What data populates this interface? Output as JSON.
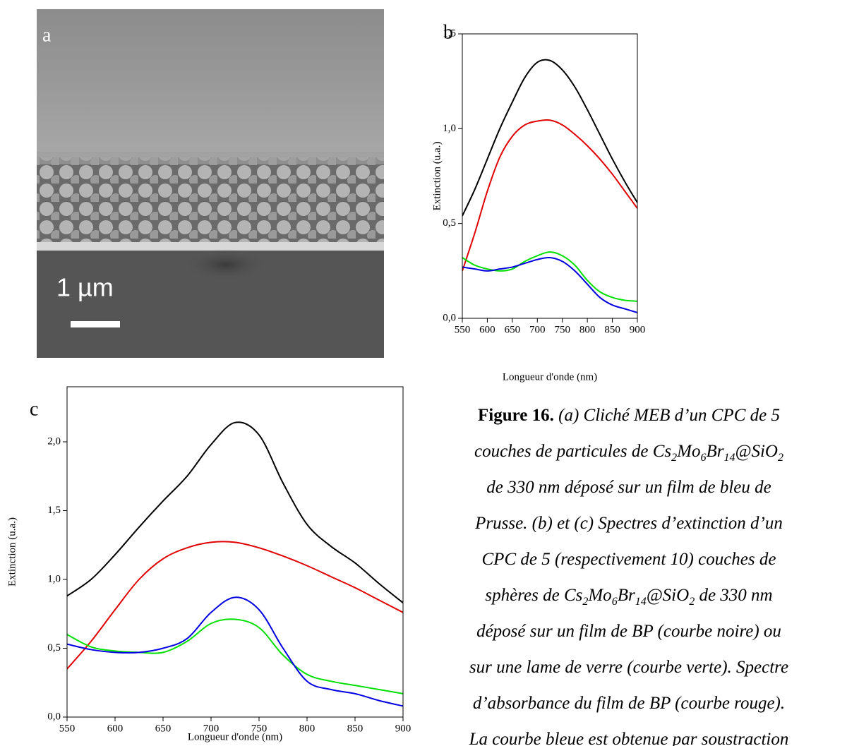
{
  "panel_a": {
    "label": "a",
    "scale_bar": "1 µm"
  },
  "chart_data": [
    {
      "type": "line",
      "label": "b",
      "xlabel": "Longueur d'onde (nm)",
      "ylabel": "Extinction (u.a.)",
      "x": [
        550,
        575,
        600,
        625,
        650,
        675,
        700,
        725,
        750,
        775,
        800,
        825,
        850,
        875,
        900
      ],
      "xlim": [
        550,
        900
      ],
      "xticks": [
        550,
        600,
        650,
        700,
        750,
        800,
        850,
        900
      ],
      "ylim": [
        0,
        1.5
      ],
      "yticks": [
        {
          "value": 0,
          "label": "0,0"
        },
        {
          "value": 0.5,
          "label": "0,5"
        },
        {
          "value": 1,
          "label": "1,0"
        },
        {
          "value": 1.5,
          "label": "1,5"
        }
      ],
      "series": [
        {
          "color": "#000000",
          "values": [
            0.54,
            0.68,
            0.84,
            1.0,
            1.14,
            1.27,
            1.35,
            1.36,
            1.31,
            1.22,
            1.1,
            0.97,
            0.84,
            0.72,
            0.61
          ]
        },
        {
          "color": "#e00000",
          "values": [
            0.25,
            0.45,
            0.67,
            0.85,
            0.96,
            1.02,
            1.04,
            1.045,
            1.02,
            0.97,
            0.91,
            0.84,
            0.76,
            0.67,
            0.58
          ]
        },
        {
          "color": "#00e000",
          "values": [
            0.32,
            0.28,
            0.26,
            0.25,
            0.26,
            0.3,
            0.33,
            0.35,
            0.33,
            0.28,
            0.2,
            0.14,
            0.11,
            0.095,
            0.09
          ]
        },
        {
          "color": "#0000e0",
          "values": [
            0.27,
            0.26,
            0.25,
            0.26,
            0.27,
            0.29,
            0.31,
            0.32,
            0.3,
            0.25,
            0.18,
            0.11,
            0.07,
            0.05,
            0.03
          ]
        }
      ]
    },
    {
      "type": "line",
      "label": "c",
      "xlabel": "Longueur d'onde (nm)",
      "ylabel": "Extinction (u.a.)",
      "x": [
        550,
        575,
        600,
        625,
        650,
        675,
        700,
        725,
        750,
        775,
        800,
        825,
        850,
        875,
        900
      ],
      "xlim": [
        550,
        900
      ],
      "xticks": [
        550,
        600,
        650,
        700,
        750,
        800,
        850,
        900
      ],
      "ylim": [
        0,
        2.4
      ],
      "yticks": [
        {
          "value": 0,
          "label": "0,0"
        },
        {
          "value": 0.5,
          "label": "0,5"
        },
        {
          "value": 1,
          "label": "1,0"
        },
        {
          "value": 1.5,
          "label": "1,5"
        },
        {
          "value": 2,
          "label": "2,0"
        }
      ],
      "series": [
        {
          "color": "#000000",
          "values": [
            0.88,
            1.0,
            1.18,
            1.38,
            1.57,
            1.75,
            1.98,
            2.14,
            2.05,
            1.7,
            1.4,
            1.24,
            1.12,
            0.97,
            0.83
          ]
        },
        {
          "color": "#e00000",
          "values": [
            0.35,
            0.55,
            0.78,
            1.0,
            1.15,
            1.23,
            1.27,
            1.27,
            1.23,
            1.17,
            1.1,
            1.02,
            0.94,
            0.85,
            0.76
          ]
        },
        {
          "color": "#00e000",
          "values": [
            0.6,
            0.51,
            0.48,
            0.47,
            0.47,
            0.55,
            0.68,
            0.71,
            0.65,
            0.45,
            0.31,
            0.26,
            0.23,
            0.2,
            0.17
          ]
        },
        {
          "color": "#0000e0",
          "values": [
            0.53,
            0.49,
            0.47,
            0.47,
            0.5,
            0.57,
            0.76,
            0.87,
            0.78,
            0.5,
            0.26,
            0.2,
            0.17,
            0.12,
            0.08
          ]
        }
      ]
    }
  ],
  "caption": {
    "lines": [
      [
        {
          "b": "Figure 16."
        },
        " (a) Cliché MEB d’un CPC de 5"
      ],
      [
        "couches de particules de Cs",
        {
          "sub": "2"
        },
        "Mo",
        {
          "sub": "6"
        },
        "Br",
        {
          "sub": "14"
        },
        "@SiO",
        {
          "sub": "2"
        }
      ],
      [
        "de 330 nm déposé sur un film de bleu de"
      ],
      [
        "Prusse. (b) et (c) Spectres d’extinction d’un"
      ],
      [
        "CPC de 5 (respectivement 10) couches de"
      ],
      [
        "sphères de Cs",
        {
          "sub": "2"
        },
        "Mo",
        {
          "sub": "6"
        },
        "Br",
        {
          "sub": "14"
        },
        "@SiO",
        {
          "sub": "2"
        },
        " de 330 nm"
      ],
      [
        "déposé sur un film de BP (courbe noire) ou"
      ],
      [
        "sur une lame de verre (courbe verte). Spectre"
      ],
      [
        "d’absorbance du film de BP (courbe rouge)."
      ],
      [
        "La courbe bleue est obtenue par soustraction"
      ]
    ]
  }
}
